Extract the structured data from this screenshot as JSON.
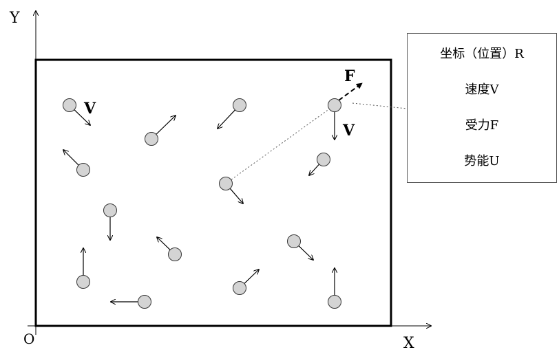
{
  "axes": {
    "y_label": "Y",
    "x_label": "X",
    "origin_label": "O"
  },
  "labels": {
    "force": "F",
    "velocity": "V"
  },
  "properties": [
    "坐标（位置）R",
    "速度V",
    "受力F",
    "势能U"
  ],
  "colors": {
    "particle_fill": "#d4d4d4",
    "stroke": "#000000"
  }
}
